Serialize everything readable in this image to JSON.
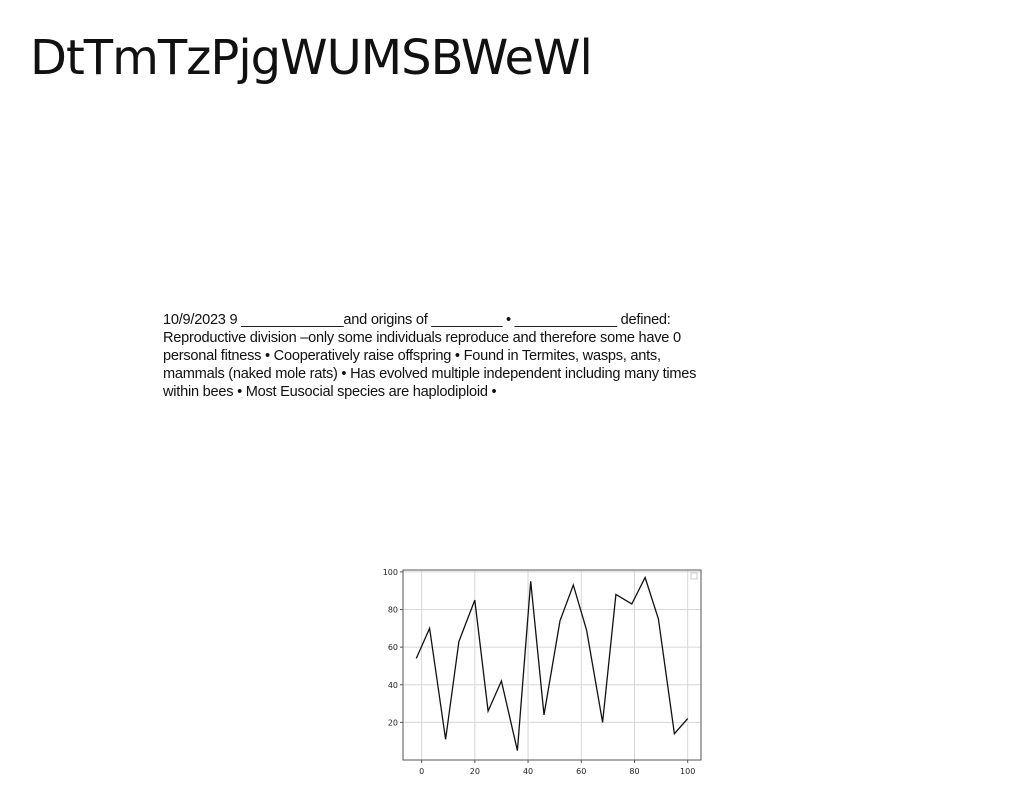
{
  "slide": {
    "title": "DtTmTzPjgWUMSBWeWl",
    "body": "10/9/2023 9 _____________and origins of _________ • _____________ defined: Reproductive division –only some individuals reproduce and therefore some have 0 personal fitness • Cooperatively raise offspring • Found in Termites, wasps, ants, mammals (naked mole rats) • Has evolved multiple independent including many times within bees • Most Eusocial species are haplodiploid •"
  },
  "chart_data": {
    "type": "line",
    "x": [
      -2,
      3,
      9,
      14,
      20,
      25,
      30,
      36,
      41,
      46,
      52,
      57,
      62,
      68,
      73,
      79,
      84,
      89,
      95,
      100
    ],
    "series": [
      {
        "values": [
          54,
          70,
          11,
          63,
          85,
          26,
          42,
          5,
          95,
          24,
          74,
          93,
          69,
          20,
          88,
          83,
          97,
          75,
          14,
          22
        ],
        "color": "#111111"
      }
    ],
    "xticks": [
      0,
      20,
      40,
      60,
      80,
      100
    ],
    "yticks": [
      20,
      40,
      60,
      80,
      100
    ],
    "xlim": [
      -7,
      105
    ],
    "ylim": [
      0,
      101
    ],
    "grid": true,
    "legend": "top-right",
    "title": "",
    "xlabel": "",
    "ylabel": ""
  }
}
